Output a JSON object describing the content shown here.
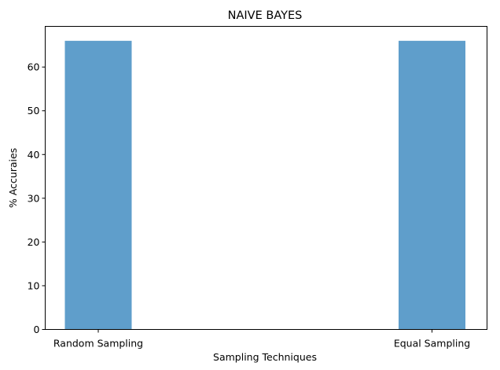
{
  "chart_data": {
    "type": "bar",
    "title": "NAIVE BAYES",
    "xlabel": "Sampling Techniques",
    "ylabel": "% Accuraies",
    "categories": [
      "Random Sampling",
      "Equal Sampling"
    ],
    "values": [
      66,
      66
    ],
    "ylim": [
      0,
      69.3
    ],
    "yticks": [
      0,
      10,
      20,
      30,
      40,
      50,
      60
    ],
    "grid": false,
    "bar_color": "#5f9ecb"
  }
}
